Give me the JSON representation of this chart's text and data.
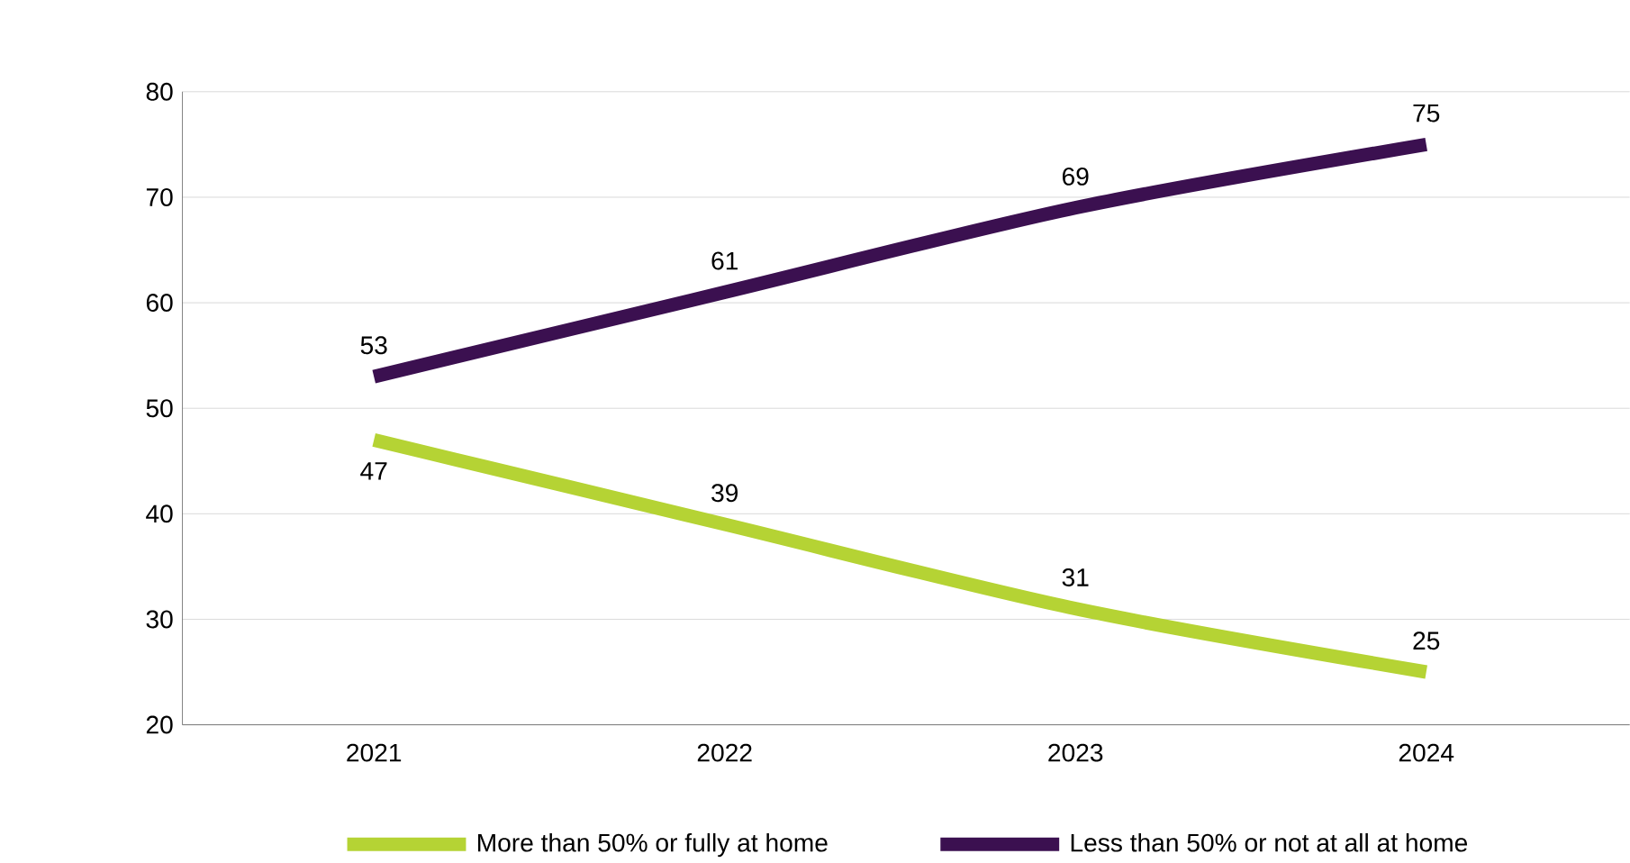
{
  "chart_data": {
    "type": "line",
    "categories": [
      "2021",
      "2022",
      "2023",
      "2024"
    ],
    "series": [
      {
        "name": "More than 50% or fully at home",
        "color": "#b5d334",
        "values": [
          47,
          39,
          31,
          25
        ]
      },
      {
        "name": "Less than 50% or not at all at home",
        "color": "#3b1050",
        "values": [
          53,
          61,
          69,
          75
        ]
      }
    ],
    "ylim": [
      20,
      80
    ],
    "yticks": [
      20,
      30,
      40,
      50,
      60,
      70,
      80
    ],
    "grid": "y",
    "legend": "bottom",
    "data_labels": true,
    "line_style": "solid",
    "marker": "none"
  }
}
